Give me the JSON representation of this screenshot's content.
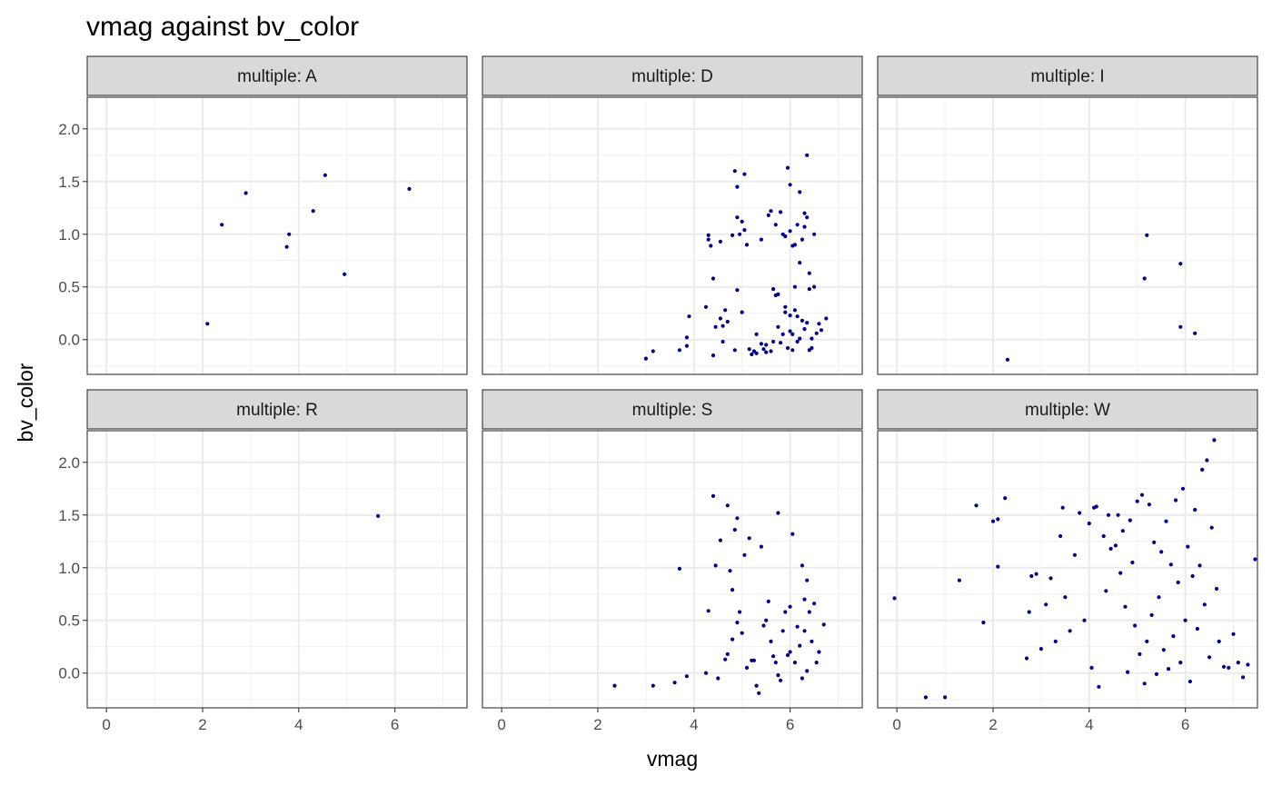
{
  "chart_data": {
    "type": "scatter",
    "title": "vmag against bv_color",
    "xlabel": "vmag",
    "ylabel": "bv_color",
    "facet_var": "multiple",
    "facet_layout": "3 columns x 2 rows, shared axes",
    "xlim": [
      -0.4,
      7.5
    ],
    "ylim": [
      -0.33,
      2.3
    ],
    "x_ticks": [
      0,
      2,
      4,
      6
    ],
    "y_ticks": [
      0.0,
      0.5,
      1.0,
      1.5,
      2.0
    ],
    "x_tick_labels": [
      "0",
      "2",
      "4",
      "6"
    ],
    "y_tick_labels": [
      "0.0",
      "0.5",
      "1.0",
      "1.5",
      "2.0"
    ],
    "grid": true,
    "point_color": "#000080",
    "panels": [
      {
        "label": "multiple: A",
        "points": [
          [
            2.1,
            0.15
          ],
          [
            2.4,
            1.09
          ],
          [
            2.9,
            1.39
          ],
          [
            3.75,
            0.88
          ],
          [
            3.8,
            1.0
          ],
          [
            4.3,
            1.22
          ],
          [
            4.55,
            1.56
          ],
          [
            4.95,
            0.62
          ],
          [
            6.3,
            1.43
          ]
        ]
      },
      {
        "label": "multiple: D",
        "points": [
          [
            3.0,
            -0.18
          ],
          [
            3.15,
            -0.11
          ],
          [
            3.7,
            -0.1
          ],
          [
            3.85,
            0.02
          ],
          [
            3.85,
            -0.06
          ],
          [
            3.9,
            0.22
          ],
          [
            4.25,
            0.31
          ],
          [
            4.3,
            0.95
          ],
          [
            4.3,
            0.99
          ],
          [
            4.35,
            0.89
          ],
          [
            4.4,
            -0.15
          ],
          [
            4.4,
            0.58
          ],
          [
            4.45,
            0.12
          ],
          [
            4.55,
            0.2
          ],
          [
            4.55,
            0.93
          ],
          [
            4.6,
            0.13
          ],
          [
            4.6,
            -0.02
          ],
          [
            4.65,
            0.28
          ],
          [
            4.7,
            0.17
          ],
          [
            4.8,
            0.99
          ],
          [
            4.85,
            1.6
          ],
          [
            4.85,
            -0.1
          ],
          [
            4.9,
            1.16
          ],
          [
            4.9,
            1.45
          ],
          [
            4.9,
            0.47
          ],
          [
            4.95,
            1.0
          ],
          [
            5.0,
            1.12
          ],
          [
            5.0,
            0.26
          ],
          [
            5.05,
            1.57
          ],
          [
            5.05,
            1.04
          ],
          [
            5.1,
            0.9
          ],
          [
            5.15,
            -0.09
          ],
          [
            5.2,
            -0.14
          ],
          [
            5.25,
            -0.11
          ],
          [
            5.3,
            0.05
          ],
          [
            5.3,
            -0.13
          ],
          [
            5.4,
            0.95
          ],
          [
            5.4,
            -0.04
          ],
          [
            5.45,
            -0.09
          ],
          [
            5.5,
            -0.05
          ],
          [
            5.5,
            -0.12
          ],
          [
            5.55,
            1.18
          ],
          [
            5.6,
            -0.11
          ],
          [
            5.6,
            1.22
          ],
          [
            5.65,
            -0.02
          ],
          [
            5.65,
            0.48
          ],
          [
            5.7,
            0.42
          ],
          [
            5.7,
            1.09
          ],
          [
            5.75,
            0.12
          ],
          [
            5.75,
            0.43
          ],
          [
            5.8,
            1.21
          ],
          [
            5.8,
            -0.03
          ],
          [
            5.85,
            0.05
          ],
          [
            5.85,
            1.0
          ],
          [
            5.9,
            0.98
          ],
          [
            5.9,
            0.31
          ],
          [
            5.9,
            0.26
          ],
          [
            5.95,
            -0.08
          ],
          [
            5.95,
            1.63
          ],
          [
            6.0,
            1.47
          ],
          [
            6.0,
            1.03
          ],
          [
            6.0,
            0.08
          ],
          [
            6.0,
            0.23
          ],
          [
            6.05,
            -0.1
          ],
          [
            6.05,
            0.89
          ],
          [
            6.05,
            0.05
          ],
          [
            6.1,
            0.9
          ],
          [
            6.1,
            0.28
          ],
          [
            6.1,
            0.5
          ],
          [
            6.15,
            1.09
          ],
          [
            6.15,
            0.22
          ],
          [
            6.15,
            -0.02
          ],
          [
            6.2,
            1.4
          ],
          [
            6.2,
            0.73
          ],
          [
            6.2,
            0.01
          ],
          [
            6.25,
            0.95
          ],
          [
            6.25,
            0.18
          ],
          [
            6.3,
            1.2
          ],
          [
            6.3,
            0.1
          ],
          [
            6.3,
            1.07
          ],
          [
            6.35,
            1.16
          ],
          [
            6.35,
            1.75
          ],
          [
            6.35,
            0.16
          ],
          [
            6.4,
            0.63
          ],
          [
            6.4,
            -0.1
          ],
          [
            6.4,
            0.48
          ],
          [
            6.45,
            0.01
          ],
          [
            6.45,
            -0.08
          ],
          [
            6.5,
            1.0
          ],
          [
            6.5,
            0.5
          ],
          [
            6.55,
            0.06
          ],
          [
            6.6,
            0.15
          ],
          [
            6.65,
            0.09
          ],
          [
            6.75,
            0.2
          ]
        ]
      },
      {
        "label": "multiple: I",
        "points": [
          [
            2.3,
            -0.19
          ],
          [
            5.15,
            0.58
          ],
          [
            5.2,
            0.99
          ],
          [
            5.9,
            0.72
          ],
          [
            5.9,
            0.12
          ],
          [
            6.2,
            0.06
          ]
        ]
      },
      {
        "label": "multiple: R",
        "points": [
          [
            5.65,
            1.49
          ]
        ]
      },
      {
        "label": "multiple: S",
        "points": [
          [
            2.35,
            -0.12
          ],
          [
            3.15,
            -0.12
          ],
          [
            3.6,
            -0.09
          ],
          [
            3.7,
            0.99
          ],
          [
            3.85,
            -0.03
          ],
          [
            4.25,
            0.0
          ],
          [
            4.3,
            0.59
          ],
          [
            4.4,
            1.68
          ],
          [
            4.45,
            1.02
          ],
          [
            4.5,
            -0.05
          ],
          [
            4.55,
            1.26
          ],
          [
            4.65,
            0.13
          ],
          [
            4.7,
            1.59
          ],
          [
            4.7,
            0.18
          ],
          [
            4.75,
            0.97
          ],
          [
            4.8,
            0.32
          ],
          [
            4.8,
            0.79
          ],
          [
            4.85,
            1.36
          ],
          [
            4.9,
            1.47
          ],
          [
            4.9,
            0.48
          ],
          [
            4.95,
            0.58
          ],
          [
            5.0,
            0.38
          ],
          [
            5.05,
            1.12
          ],
          [
            5.1,
            0.05
          ],
          [
            5.15,
            1.28
          ],
          [
            5.2,
            0.12
          ],
          [
            5.25,
            0.12
          ],
          [
            5.3,
            -0.12
          ],
          [
            5.35,
            -0.19
          ],
          [
            5.4,
            1.2
          ],
          [
            5.45,
            0.45
          ],
          [
            5.5,
            0.5
          ],
          [
            5.55,
            0.68
          ],
          [
            5.6,
            0.3
          ],
          [
            5.65,
            0.16
          ],
          [
            5.7,
            0.1
          ],
          [
            5.75,
            1.52
          ],
          [
            5.75,
            -0.02
          ],
          [
            5.8,
            -0.07
          ],
          [
            5.85,
            0.4
          ],
          [
            5.9,
            0.58
          ],
          [
            5.95,
            0.17
          ],
          [
            6.0,
            0.2
          ],
          [
            6.0,
            0.63
          ],
          [
            6.05,
            1.32
          ],
          [
            6.1,
            0.1
          ],
          [
            6.15,
            0.44
          ],
          [
            6.2,
            0.26
          ],
          [
            6.25,
            1.02
          ],
          [
            6.25,
            -0.05
          ],
          [
            6.3,
            0.7
          ],
          [
            6.3,
            0.4
          ],
          [
            6.35,
            0.88
          ],
          [
            6.35,
            0.02
          ],
          [
            6.4,
            0.58
          ],
          [
            6.45,
            0.3
          ],
          [
            6.5,
            0.66
          ],
          [
            6.55,
            0.1
          ],
          [
            6.6,
            0.2
          ],
          [
            6.7,
            0.46
          ]
        ]
      },
      {
        "label": "multiple: W",
        "points": [
          [
            -0.05,
            0.71
          ],
          [
            0.6,
            -0.23
          ],
          [
            1.0,
            -0.23
          ],
          [
            1.3,
            0.88
          ],
          [
            1.65,
            1.59
          ],
          [
            1.8,
            0.48
          ],
          [
            2.0,
            1.44
          ],
          [
            2.1,
            1.46
          ],
          [
            2.1,
            1.01
          ],
          [
            2.25,
            1.66
          ],
          [
            2.7,
            0.14
          ],
          [
            2.75,
            0.58
          ],
          [
            2.8,
            0.92
          ],
          [
            2.9,
            0.94
          ],
          [
            3.0,
            0.23
          ],
          [
            3.1,
            0.65
          ],
          [
            3.2,
            0.9
          ],
          [
            3.3,
            0.3
          ],
          [
            3.4,
            1.3
          ],
          [
            3.45,
            1.57
          ],
          [
            3.5,
            0.72
          ],
          [
            3.6,
            0.4
          ],
          [
            3.7,
            1.12
          ],
          [
            3.8,
            1.52
          ],
          [
            3.9,
            0.5
          ],
          [
            4.0,
            1.42
          ],
          [
            4.05,
            0.05
          ],
          [
            4.1,
            1.57
          ],
          [
            4.15,
            1.58
          ],
          [
            4.2,
            -0.13
          ],
          [
            4.3,
            1.3
          ],
          [
            4.35,
            0.78
          ],
          [
            4.4,
            1.5
          ],
          [
            4.45,
            1.18
          ],
          [
            4.55,
            1.21
          ],
          [
            4.6,
            1.5
          ],
          [
            4.65,
            0.95
          ],
          [
            4.7,
            1.35
          ],
          [
            4.75,
            0.63
          ],
          [
            4.8,
            0.01
          ],
          [
            4.85,
            1.45
          ],
          [
            4.9,
            1.05
          ],
          [
            4.95,
            0.45
          ],
          [
            5.0,
            1.63
          ],
          [
            5.05,
            0.18
          ],
          [
            5.1,
            1.69
          ],
          [
            5.15,
            -0.1
          ],
          [
            5.2,
            0.3
          ],
          [
            5.25,
            1.6
          ],
          [
            5.3,
            0.55
          ],
          [
            5.35,
            1.24
          ],
          [
            5.4,
            -0.01
          ],
          [
            5.45,
            0.72
          ],
          [
            5.5,
            1.15
          ],
          [
            5.55,
            0.22
          ],
          [
            5.6,
            1.44
          ],
          [
            5.65,
            0.04
          ],
          [
            5.7,
            1.03
          ],
          [
            5.75,
            0.35
          ],
          [
            5.8,
            1.64
          ],
          [
            5.85,
            0.86
          ],
          [
            5.9,
            0.1
          ],
          [
            5.95,
            1.75
          ],
          [
            6.0,
            0.5
          ],
          [
            6.05,
            1.2
          ],
          [
            6.1,
            -0.08
          ],
          [
            6.15,
            0.92
          ],
          [
            6.2,
            1.55
          ],
          [
            6.25,
            0.42
          ],
          [
            6.3,
            1.02
          ],
          [
            6.35,
            1.93
          ],
          [
            6.4,
            0.65
          ],
          [
            6.45,
            2.02
          ],
          [
            6.5,
            0.15
          ],
          [
            6.55,
            1.38
          ],
          [
            6.6,
            2.21
          ],
          [
            6.65,
            0.8
          ],
          [
            6.7,
            0.3
          ],
          [
            6.8,
            0.06
          ],
          [
            6.9,
            0.05
          ],
          [
            7.0,
            0.37
          ],
          [
            7.1,
            0.1
          ],
          [
            7.2,
            -0.04
          ],
          [
            7.3,
            0.08
          ],
          [
            7.45,
            1.08
          ]
        ]
      }
    ]
  }
}
